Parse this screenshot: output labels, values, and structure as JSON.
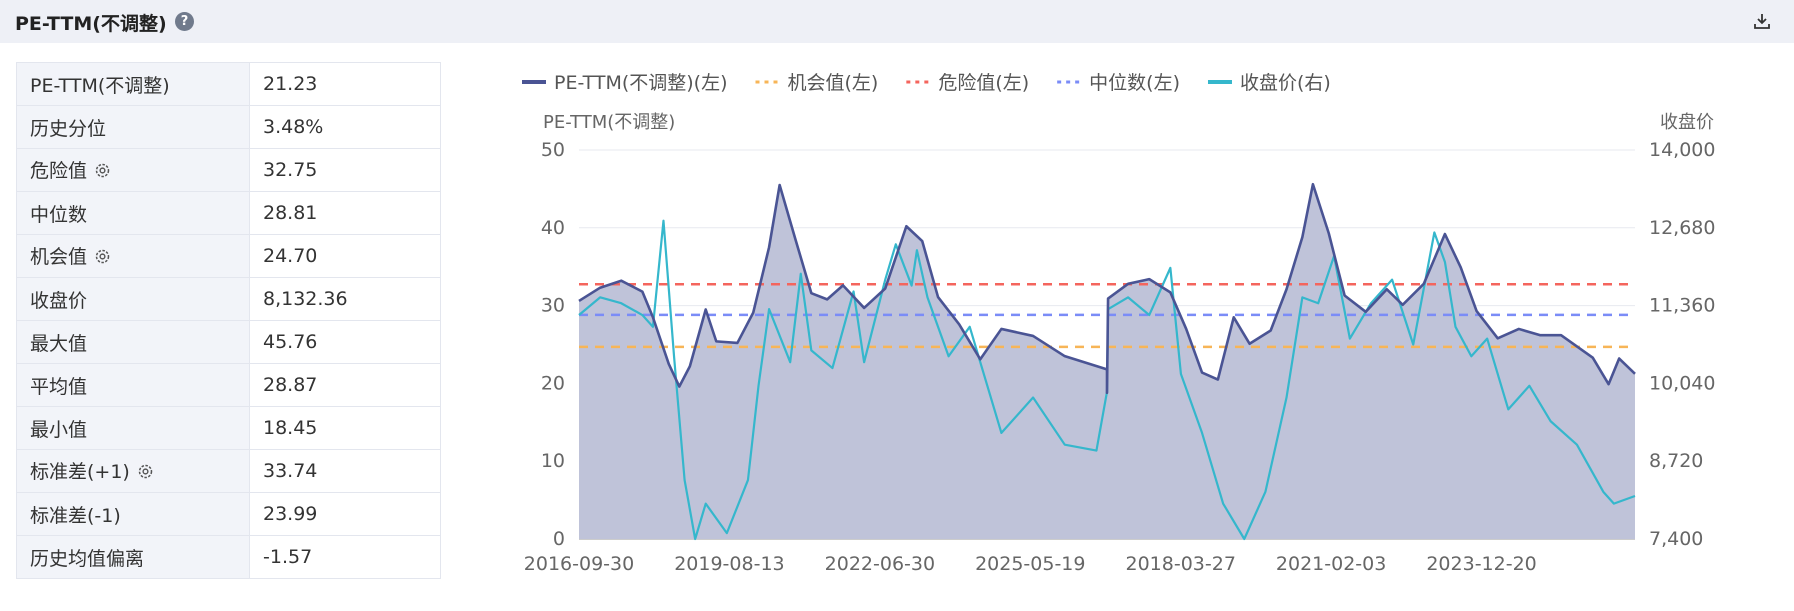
{
  "header": {
    "title": "PE-TTM(不调整)",
    "help_icon": "question-circle-icon",
    "export_icon": "export-download-icon"
  },
  "stats": [
    {
      "label": "PE-TTM(不调整)",
      "value": "21.23",
      "gear": false
    },
    {
      "label": "历史分位",
      "value": "3.48%",
      "gear": false
    },
    {
      "label": "危险值",
      "value": "32.75",
      "gear": true
    },
    {
      "label": "中位数",
      "value": "28.81",
      "gear": false
    },
    {
      "label": "机会值",
      "value": "24.70",
      "gear": true
    },
    {
      "label": "收盘价",
      "value": "8,132.36",
      "gear": false
    },
    {
      "label": "最大值",
      "value": "45.76",
      "gear": false
    },
    {
      "label": "平均值",
      "value": "28.87",
      "gear": false
    },
    {
      "label": "最小值",
      "value": "18.45",
      "gear": false
    },
    {
      "label": "标准差(+1)",
      "value": "33.74",
      "gear": true
    },
    {
      "label": "标准差(-1)",
      "value": "23.99",
      "gear": false
    },
    {
      "label": "历史均值偏离",
      "value": "-1.57",
      "gear": false
    }
  ],
  "chart_data": {
    "type": "line",
    "legend_position": "top",
    "legend": [
      {
        "label": "PE-TTM(不调整)(左)",
        "color": "#4a5494",
        "style": "solid"
      },
      {
        "label": "机会值(左)",
        "color": "#f7b557",
        "style": "dashed"
      },
      {
        "label": "危险值(左)",
        "color": "#f4655d",
        "style": "dashed"
      },
      {
        "label": "中位数(左)",
        "color": "#7b8cf7",
        "style": "dashed"
      },
      {
        "label": "收盘价(右)",
        "color": "#35b7cc",
        "style": "solid"
      }
    ],
    "y_left_label": "PE-TTM(不调整)",
    "y_right_label": "收盘价",
    "y_left_ticks": [
      "0",
      "10",
      "20",
      "30",
      "40",
      "50"
    ],
    "y_left_range": [
      0,
      50
    ],
    "y_right_ticks": [
      "7,400",
      "8,720",
      "10,040",
      "11,360",
      "12,680",
      "14,000"
    ],
    "y_right_range": [
      7400,
      14000
    ],
    "x_ticks": [
      "2016-09-30",
      "2019-08-13",
      "2022-06-30",
      "2025-05-19",
      "2018-03-27",
      "2021-02-03",
      "2023-12-20"
    ],
    "grid": true,
    "reference_lines": {
      "danger": 32.75,
      "median": 28.81,
      "opportunity": 24.7
    },
    "pe_series": [
      [
        0.0,
        30.6
      ],
      [
        0.02,
        32.3
      ],
      [
        0.04,
        33.2
      ],
      [
        0.06,
        31.8
      ],
      [
        0.07,
        28.5
      ],
      [
        0.085,
        22.5
      ],
      [
        0.095,
        19.6
      ],
      [
        0.105,
        22.2
      ],
      [
        0.12,
        29.5
      ],
      [
        0.13,
        25.4
      ],
      [
        0.15,
        25.2
      ],
      [
        0.165,
        29.1
      ],
      [
        0.18,
        37.5
      ],
      [
        0.19,
        45.5
      ],
      [
        0.205,
        38.5
      ],
      [
        0.22,
        31.6
      ],
      [
        0.235,
        30.8
      ],
      [
        0.25,
        32.6
      ],
      [
        0.27,
        29.7
      ],
      [
        0.29,
        32.2
      ],
      [
        0.31,
        40.2
      ],
      [
        0.325,
        38.3
      ],
      [
        0.34,
        31.1
      ],
      [
        0.36,
        27.6
      ],
      [
        0.38,
        23.1
      ],
      [
        0.4,
        27.0
      ],
      [
        0.43,
        26.1
      ],
      [
        0.46,
        23.5
      ],
      [
        0.5,
        21.8
      ],
      [
        0.5,
        18.8
      ],
      [
        0.501,
        30.9
      ],
      [
        0.52,
        32.8
      ],
      [
        0.54,
        33.4
      ],
      [
        0.56,
        31.7
      ],
      [
        0.575,
        27.0
      ],
      [
        0.59,
        21.4
      ],
      [
        0.605,
        20.5
      ],
      [
        0.62,
        28.5
      ],
      [
        0.635,
        25.1
      ],
      [
        0.655,
        26.8
      ],
      [
        0.67,
        32.1
      ],
      [
        0.685,
        38.8
      ],
      [
        0.695,
        45.6
      ],
      [
        0.71,
        39.3
      ],
      [
        0.725,
        31.3
      ],
      [
        0.745,
        29.2
      ],
      [
        0.765,
        32.1
      ],
      [
        0.78,
        30.1
      ],
      [
        0.8,
        32.8
      ],
      [
        0.82,
        39.2
      ],
      [
        0.835,
        34.9
      ],
      [
        0.85,
        29.3
      ],
      [
        0.87,
        25.8
      ],
      [
        0.89,
        27.0
      ],
      [
        0.91,
        26.2
      ],
      [
        0.93,
        26.2
      ],
      [
        0.96,
        23.3
      ],
      [
        0.975,
        19.9
      ],
      [
        0.985,
        23.2
      ],
      [
        1.0,
        21.23
      ]
    ],
    "close_series": [
      [
        0.0,
        11.2
      ],
      [
        0.02,
        11.5
      ],
      [
        0.04,
        11.4
      ],
      [
        0.06,
        11.2
      ],
      [
        0.07,
        11.0
      ],
      [
        0.08,
        12.8
      ],
      [
        0.09,
        10.5
      ],
      [
        0.1,
        8.4
      ],
      [
        0.11,
        7.4
      ],
      [
        0.12,
        8.0
      ],
      [
        0.14,
        7.5
      ],
      [
        0.16,
        8.4
      ],
      [
        0.17,
        10.0
      ],
      [
        0.18,
        11.3
      ],
      [
        0.2,
        10.4
      ],
      [
        0.21,
        11.9
      ],
      [
        0.22,
        10.6
      ],
      [
        0.24,
        10.3
      ],
      [
        0.26,
        11.6
      ],
      [
        0.27,
        10.4
      ],
      [
        0.29,
        11.8
      ],
      [
        0.3,
        12.4
      ],
      [
        0.315,
        11.7
      ],
      [
        0.32,
        12.3
      ],
      [
        0.33,
        11.5
      ],
      [
        0.35,
        10.5
      ],
      [
        0.37,
        11.0
      ],
      [
        0.4,
        9.2
      ],
      [
        0.43,
        9.8
      ],
      [
        0.46,
        9.0
      ],
      [
        0.49,
        8.9
      ],
      [
        0.5,
        9.9
      ],
      [
        0.501,
        11.3
      ],
      [
        0.52,
        11.5
      ],
      [
        0.54,
        11.2
      ],
      [
        0.56,
        12.0
      ],
      [
        0.57,
        10.2
      ],
      [
        0.59,
        9.2
      ],
      [
        0.61,
        8.0
      ],
      [
        0.63,
        7.4
      ],
      [
        0.65,
        8.2
      ],
      [
        0.67,
        9.8
      ],
      [
        0.685,
        11.5
      ],
      [
        0.7,
        11.4
      ],
      [
        0.715,
        12.2
      ],
      [
        0.73,
        10.8
      ],
      [
        0.75,
        11.4
      ],
      [
        0.77,
        11.8
      ],
      [
        0.79,
        10.7
      ],
      [
        0.81,
        12.6
      ],
      [
        0.82,
        12.1
      ],
      [
        0.83,
        11.0
      ],
      [
        0.845,
        10.5
      ],
      [
        0.86,
        10.8
      ],
      [
        0.88,
        9.6
      ],
      [
        0.9,
        10.0
      ],
      [
        0.92,
        9.4
      ],
      [
        0.945,
        9.0
      ],
      [
        0.97,
        8.2
      ],
      [
        0.98,
        8.0
      ],
      [
        1.0,
        8.13
      ]
    ]
  }
}
